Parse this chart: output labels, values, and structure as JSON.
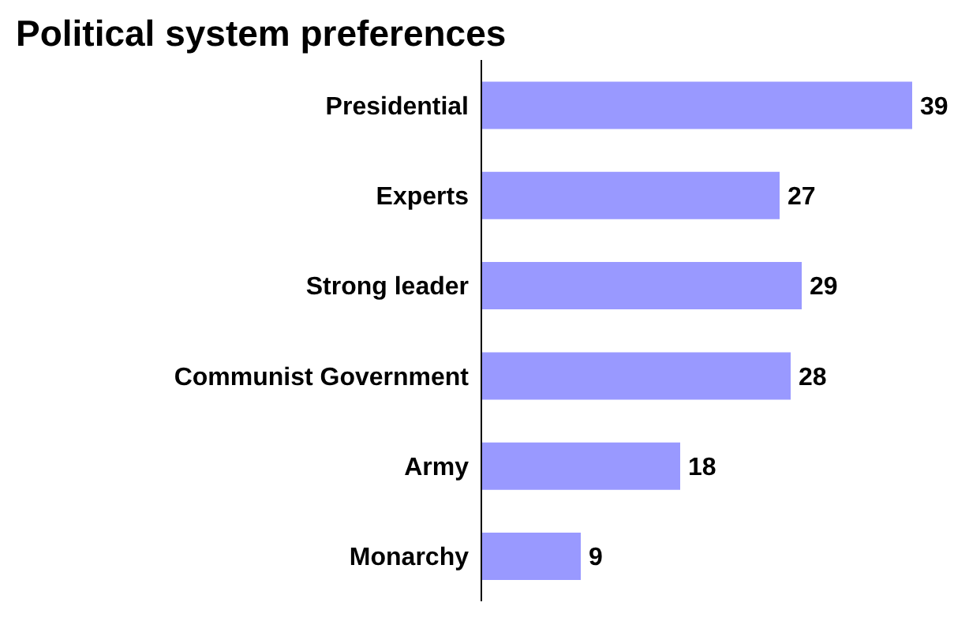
{
  "chart_data": {
    "type": "bar",
    "orientation": "horizontal",
    "title": "Political system preferences",
    "categories": [
      "Presidential",
      "Experts",
      "Strong leader",
      "Communist Government",
      "Army",
      "Monarchy"
    ],
    "values": [
      39,
      27,
      29,
      28,
      18,
      9
    ],
    "color": "#9999ff",
    "data_labels": true
  }
}
